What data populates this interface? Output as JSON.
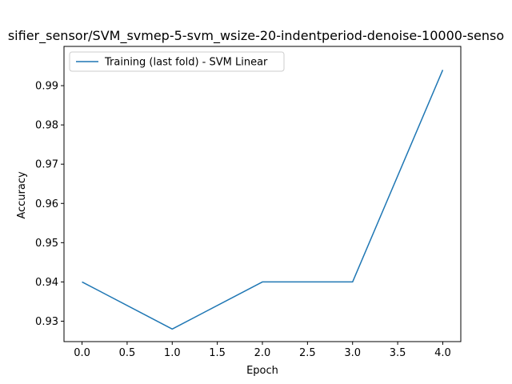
{
  "chart_data": {
    "type": "line",
    "title": "sifier_sensor/SVM_svmep-5-svm_wsize-20-indentperiod-denoise-10000-senso",
    "xlabel": "Epoch",
    "ylabel": "Accuracy",
    "xlim": [
      -0.2,
      4.2
    ],
    "ylim": [
      0.9248,
      1.0
    ],
    "x_ticks": [
      0.0,
      0.5,
      1.0,
      1.5,
      2.0,
      2.5,
      3.0,
      3.5,
      4.0
    ],
    "x_tick_labels": [
      "0.0",
      "0.5",
      "1.0",
      "1.5",
      "2.0",
      "2.5",
      "3.0",
      "3.5",
      "4.0"
    ],
    "y_ticks": [
      0.93,
      0.94,
      0.95,
      0.96,
      0.97,
      0.98,
      0.99
    ],
    "y_tick_labels": [
      "0.93",
      "0.94",
      "0.95",
      "0.96",
      "0.97",
      "0.98",
      "0.99"
    ],
    "grid": false,
    "legend_position": "top-left",
    "series": [
      {
        "name": "Training (last fold) - SVM Linear",
        "color": "#1f77b4",
        "x": [
          0,
          1,
          2,
          3,
          4
        ],
        "y": [
          0.94,
          0.928,
          0.94,
          0.94,
          0.994
        ]
      }
    ]
  }
}
